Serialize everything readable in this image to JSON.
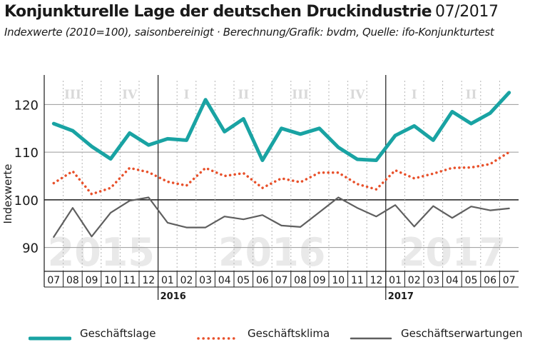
{
  "header": {
    "title": "Konjunkturelle Lage der deutschen Druckindustrie",
    "title_date": "07/2017",
    "subtitle": "Indexwerte (2010=100), saisonbereinigt · Berechnung/Grafik: bvdm, Quelle: ifo-Konjunkturtest"
  },
  "colors": {
    "geschaeftslage": "#19a3a3",
    "geschaeftsklima": "#e8502a",
    "geschaeftserwartungen": "#5f5f5f",
    "axis": "#1a1a1a",
    "watermark": "#e9e9e9"
  },
  "chart_data": {
    "type": "line",
    "ylabel": "Indexwerte",
    "ylim": [
      85,
      125
    ],
    "yticks": [
      90,
      100,
      110,
      120
    ],
    "grid": true,
    "legend_position": "bottom",
    "categories": [
      "07",
      "08",
      "09",
      "10",
      "11",
      "12",
      "01",
      "02",
      "03",
      "04",
      "05",
      "06",
      "07",
      "08",
      "09",
      "10",
      "11",
      "12",
      "01",
      "02",
      "03",
      "04",
      "05",
      "06",
      "07"
    ],
    "year_labels": [
      {
        "label": "2016",
        "start_index": 6
      },
      {
        "label": "2017",
        "start_index": 18
      }
    ],
    "year_watermarks": [
      {
        "label": "2015",
        "start_index": 0,
        "end_index": 5
      },
      {
        "label": "2016",
        "start_index": 6,
        "end_index": 17
      },
      {
        "label": "2017",
        "start_index": 18,
        "end_index": 24
      }
    ],
    "quarters": [
      {
        "label": "III",
        "start_index": 0,
        "end_index": 2
      },
      {
        "label": "IV",
        "start_index": 3,
        "end_index": 5
      },
      {
        "label": "I",
        "start_index": 6,
        "end_index": 8
      },
      {
        "label": "II",
        "start_index": 9,
        "end_index": 11
      },
      {
        "label": "III",
        "start_index": 12,
        "end_index": 14
      },
      {
        "label": "IV",
        "start_index": 15,
        "end_index": 17
      },
      {
        "label": "I",
        "start_index": 18,
        "end_index": 20
      },
      {
        "label": "II",
        "start_index": 21,
        "end_index": 23
      }
    ],
    "series": [
      {
        "name": "Geschäftslage",
        "key": "geschaeftslage",
        "style": "solid-thick",
        "values": [
          116,
          114.5,
          111.2,
          108.6,
          114,
          111.5,
          112.8,
          112.5,
          121,
          114.3,
          117,
          108.3,
          115,
          113.8,
          115,
          111,
          108.5,
          108.3,
          113.5,
          115.5,
          112.5,
          118.5,
          116,
          118.2,
          122.5
        ]
      },
      {
        "name": "Geschäftsklima",
        "key": "geschaeftsklima",
        "style": "dotted",
        "values": [
          103.5,
          106,
          101.2,
          102.5,
          106.7,
          105.8,
          103.8,
          103,
          106.7,
          105,
          105.6,
          102.5,
          104.5,
          103.7,
          105.7,
          105.7,
          103.3,
          102.2,
          106.2,
          104.5,
          105.5,
          106.7,
          106.8,
          107.5,
          110
        ]
      },
      {
        "name": "Geschäftserwartungen",
        "key": "geschaeftserwartungen",
        "style": "solid-thin",
        "values": [
          92.2,
          98.3,
          92.3,
          97.3,
          99.8,
          100.5,
          95.2,
          94.2,
          94.2,
          96.5,
          95.9,
          96.8,
          94.6,
          94.3,
          97.4,
          100.5,
          98.3,
          96.5,
          98.9,
          94.4,
          98.7,
          96.2,
          98.6,
          97.8,
          98.2
        ]
      }
    ]
  }
}
